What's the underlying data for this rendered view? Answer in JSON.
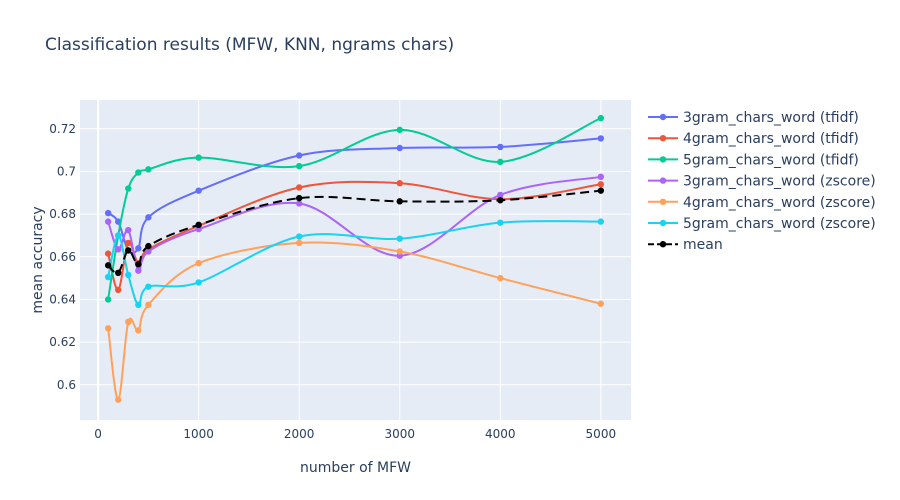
{
  "chart_data": {
    "type": "line",
    "title": "Classification results (MFW, KNN, ngrams chars)",
    "xlabel": "number of MFW",
    "ylabel": "mean accuracy",
    "xlim": [
      -180,
      5300
    ],
    "ylim": [
      0.5835,
      0.7335
    ],
    "xticks": [
      0,
      1000,
      2000,
      3000,
      4000,
      5000
    ],
    "xtick_labels": [
      "0",
      "1000",
      "2000",
      "3000",
      "4000",
      "5000"
    ],
    "yticks": [
      0.6,
      0.62,
      0.64,
      0.66,
      0.68,
      0.7,
      0.72
    ],
    "ytick_labels": [
      "0.6",
      "0.62",
      "0.64",
      "0.66",
      "0.68",
      "0.7",
      "0.72"
    ],
    "grid": true,
    "legend_position": "right",
    "x": [
      100,
      200,
      300,
      400,
      500,
      1000,
      2000,
      3000,
      4000,
      5000
    ],
    "series": [
      {
        "name": "3gram_chars_word (tfidf)",
        "color": "#636efa",
        "dash": false,
        "values": [
          0.6805,
          0.6765,
          0.663,
          0.664,
          0.6785,
          0.691,
          0.7075,
          0.711,
          0.7115,
          0.7155
        ]
      },
      {
        "name": "4gram_chars_word (tfidf)",
        "color": "#EF553B",
        "dash": false,
        "values": [
          0.6615,
          0.6445,
          0.6665,
          0.657,
          0.6635,
          0.6745,
          0.6925,
          0.6945,
          0.687,
          0.694
        ]
      },
      {
        "name": "5gram_chars_word (tfidf)",
        "color": "#00cc96",
        "dash": false,
        "values": [
          0.64,
          0.67,
          0.692,
          0.6995,
          0.701,
          0.7065,
          0.7025,
          0.7195,
          0.7045,
          0.725
        ]
      },
      {
        "name": "3gram_chars_word (zscore)",
        "color": "#ab63fa",
        "dash": false,
        "values": [
          0.6765,
          0.6635,
          0.6725,
          0.6535,
          0.6625,
          0.673,
          0.685,
          0.6605,
          0.689,
          0.6975
        ]
      },
      {
        "name": "4gram_chars_word (zscore)",
        "color": "#FFA15A",
        "dash": false,
        "values": [
          0.6265,
          0.593,
          0.6295,
          0.6255,
          0.6375,
          0.657,
          0.6665,
          0.6625,
          0.65,
          0.638
        ]
      },
      {
        "name": "5gram_chars_word (zscore)",
        "color": "#19d3f3",
        "dash": false,
        "values": [
          0.6505,
          0.67,
          0.6515,
          0.6375,
          0.646,
          0.648,
          0.6695,
          0.6685,
          0.676,
          0.6765
        ]
      },
      {
        "name": "mean",
        "color": "#000000",
        "dash": true,
        "values": [
          0.656,
          0.6525,
          0.663,
          0.6565,
          0.665,
          0.675,
          0.6875,
          0.686,
          0.6865,
          0.691
        ]
      }
    ]
  }
}
